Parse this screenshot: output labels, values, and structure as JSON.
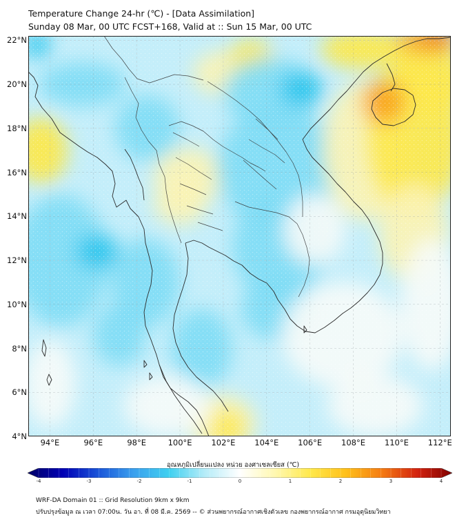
{
  "header": {
    "title_line1": "Temperature Change 24-hr (℃) - [Data Assimilation]",
    "title_line2": "Sunday 08 Mar, 00 UTC FCST+168, Valid at :: Sun 15 Mar, 00 UTC"
  },
  "map": {
    "lon_range": [
      93,
      112.5
    ],
    "lat_range": [
      4,
      22.2
    ],
    "lat_labels": [
      "22°N",
      "20°N",
      "18°N",
      "16°N",
      "14°N",
      "12°N",
      "10°N",
      "8°N",
      "6°N",
      "4°N"
    ],
    "lat_values": [
      22,
      20,
      18,
      16,
      14,
      12,
      10,
      8,
      6,
      4
    ],
    "lon_labels": [
      "94°E",
      "96°E",
      "98°E",
      "100°E",
      "102°E",
      "104°E",
      "106°E",
      "108°E",
      "110°E",
      "112°E"
    ],
    "lon_values": [
      94,
      96,
      98,
      100,
      102,
      104,
      106,
      108,
      110,
      112
    ],
    "colors": {
      "cold_strong": "#29c6ee",
      "cold": "#7fdcf5",
      "cool": "#c4eefa",
      "neutral": "#f6fbf8",
      "warm_light": "#fbf3b4",
      "warm": "#fde84b",
      "warm_strong": "#fdd21c",
      "hot": "#f9a31a",
      "hotter": "#ee5b16"
    }
  },
  "colorbar": {
    "label": "อุณหภูมิเปลี่ยนแปลง หน่วย องศาเซลเซียส (℃)",
    "min": -4,
    "max": 4,
    "ticks": [
      "-4",
      "-3",
      "-2",
      "-1",
      "0",
      "1",
      "2",
      "3",
      "4"
    ],
    "tick_values": [
      -4,
      -3,
      -2,
      -1,
      0,
      1,
      2,
      3,
      4
    ],
    "stops": [
      "#000066",
      "#0000b4",
      "#1a55d9",
      "#3aa0ee",
      "#3fd0f0",
      "#b5ecf8",
      "#ffffff",
      "#fff8b0",
      "#ffe84a",
      "#ffc019",
      "#f57c12",
      "#d42410",
      "#800000"
    ]
  },
  "footer": {
    "line1": "WRF-DA Domain 01 :: Grid Resolution 9km x 9km",
    "line2": "ปรับปรุงข้อมูล ณ เวลา 07:00น. วัน อา. ที่ 08 มี.ค. 2569 -- © ส่วนพยากรณ์อากาศเชิงตัวเลข กองพยากรณ์อากาศ กรมอุตุนิยมวิทยา"
  }
}
